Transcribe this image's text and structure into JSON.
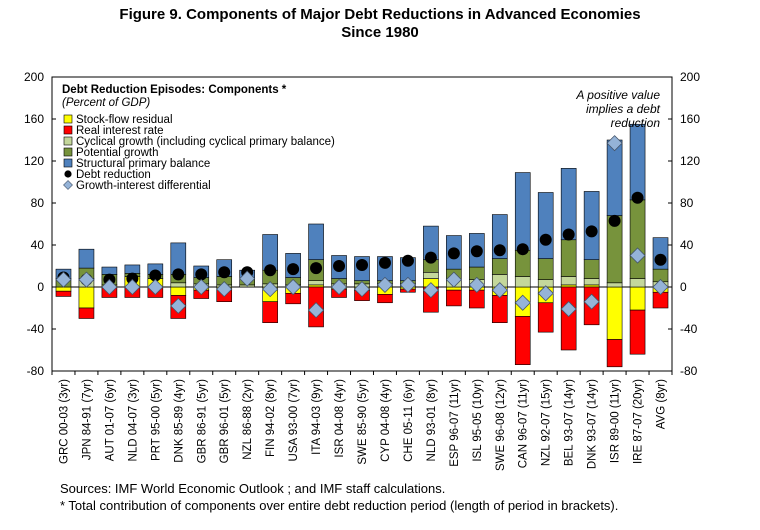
{
  "title": {
    "line1": "Figure 9. Components of Major Debt Reductions in Advanced Economies",
    "line2": "Since 1980"
  },
  "notes": {
    "source": "Sources: IMF  World Economic Outlook ; and IMF staff calculations.",
    "footnote": "* Total contribution of components over entire debt reduction period (length of period in brackets)."
  },
  "colors": {
    "stock_flow": "#ffff00",
    "real_interest": "#ff0000",
    "cyclical": "#c4d79b",
    "potential": "#77933c",
    "structural": "#4f81bd",
    "debt_reduction": "#000000",
    "growth_interest": "#95b3d7"
  },
  "chart_data": {
    "type": "bar",
    "subtype": "stacked-bar-with-markers",
    "title": "Debt Reduction Episodes: Components *",
    "subtitle": "(Percent of GDP)",
    "annotation": [
      "A positive value",
      "implies a debt",
      "reduction"
    ],
    "ylim": [
      -80,
      200
    ],
    "yticks": [
      -80,
      -40,
      0,
      40,
      80,
      120,
      160,
      200
    ],
    "categories": [
      "GRC 00-03 (3yr)",
      "JPN 84-91 (7yr)",
      "AUT 01-07 (6yr)",
      "NLD 04-07 (3yr)",
      "PRT 95-00 (5yr)",
      "DNK 85-89 (4yr)",
      "GBR 86-91 (5yr)",
      "GBR 96-01 (5yr)",
      "NZL 86-88 (2yr)",
      "FIN 94-02 (8yr)",
      "USA 93-00 (7yr)",
      "ITA 94-03 (9yr)",
      "ISR 04-08 (4yr)",
      "SWE 85-90 (5yr)",
      "CYP 04-08 (4yr)",
      "CHE 05-11 (6yr)",
      "NLD 93-01 (8yr)",
      "ESP 96-07 (11yr)",
      "ISL 95-05 (10yr)",
      "SWE 96-08 (12yr)",
      "CAN 96-07 (11yr)",
      "NZL 92-07 (15yr)",
      "BEL 93-07 (14yr)",
      "DNK 93-07 (14yr)",
      "ISR 89-00 (11yr)",
      "IRE 87-07 (20yr)",
      "AVG (8yr)"
    ],
    "series": [
      {
        "name": "Stock-flow residual",
        "key": "stock_flow",
        "kind": "bar",
        "values": [
          -4,
          -20,
          2,
          10,
          8,
          -8,
          -3,
          -2,
          0,
          -14,
          -6,
          2,
          -2,
          -3,
          -7,
          -2,
          8,
          -3,
          -3,
          -8,
          -28,
          -15,
          2,
          2,
          -50,
          -22,
          -5
        ]
      },
      {
        "name": "Real interest rate",
        "key": "real_interest",
        "kind": "bar",
        "values": [
          -5,
          -10,
          -10,
          -10,
          -10,
          -22,
          -8,
          -12,
          0,
          -20,
          -10,
          -38,
          -8,
          -10,
          -8,
          -3,
          -24,
          -15,
          -17,
          -26,
          -46,
          -28,
          -60,
          -36,
          -26,
          -42,
          -15
        ]
      },
      {
        "name": "Cyclical growth (including cyclical primary balance)",
        "key": "cyclical",
        "kind": "bar",
        "values": [
          0,
          8,
          0,
          0,
          0,
          4,
          3,
          2,
          2,
          3,
          2,
          4,
          3,
          3,
          3,
          3,
          6,
          7,
          7,
          12,
          10,
          7,
          8,
          6,
          4,
          8,
          5
        ]
      },
      {
        "name": "Potential growth",
        "key": "potential",
        "kind": "bar",
        "values": [
          8,
          10,
          10,
          3,
          4,
          8,
          6,
          8,
          6,
          13,
          7,
          20,
          5,
          3,
          3,
          3,
          12,
          10,
          12,
          15,
          25,
          20,
          35,
          18,
          64,
          75,
          12
        ]
      },
      {
        "name": "Structural primary balance",
        "key": "structural",
        "kind": "bar",
        "values": [
          9,
          18,
          7,
          8,
          10,
          30,
          11,
          16,
          8,
          34,
          23,
          34,
          22,
          23,
          23,
          22,
          32,
          32,
          32,
          42,
          74,
          63,
          68,
          65,
          72,
          72,
          30
        ]
      },
      {
        "name": "Debt reduction",
        "key": "debt_reduction",
        "kind": "marker",
        "shape": "circle",
        "values": [
          9,
          7,
          7,
          8,
          11,
          12,
          12,
          14,
          14,
          16,
          17,
          18,
          20,
          21,
          23,
          25,
          28,
          32,
          34,
          35,
          36,
          45,
          50,
          53,
          63,
          85,
          26
        ]
      },
      {
        "name": "Growth-interest differential",
        "key": "growth_interest",
        "kind": "marker",
        "shape": "diamond",
        "values": [
          7,
          7,
          0,
          0,
          0,
          -18,
          0,
          -2,
          8,
          -2,
          0,
          -22,
          0,
          -2,
          2,
          2,
          -3,
          7,
          2,
          -3,
          -15,
          -6,
          -21,
          -14,
          137,
          30,
          0
        ]
      }
    ]
  }
}
